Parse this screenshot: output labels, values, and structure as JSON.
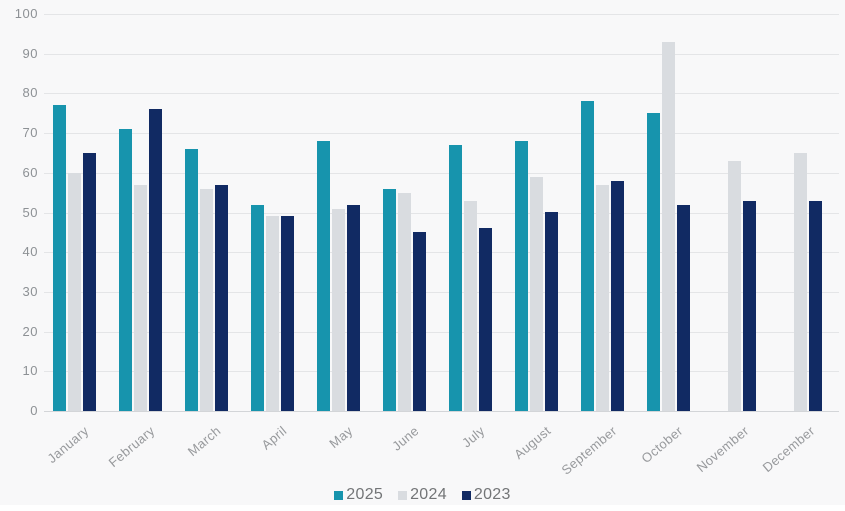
{
  "chart_data": {
    "type": "bar",
    "title": "",
    "xlabel": "",
    "ylabel": "",
    "categories": [
      "January",
      "February",
      "March",
      "April",
      "May",
      "June",
      "July",
      "August",
      "September",
      "October",
      "November",
      "December"
    ],
    "series": [
      {
        "name": "2025",
        "color": "#1794ad",
        "values": [
          77,
          71,
          66,
          52,
          68,
          56,
          67,
          68,
          78,
          75,
          null,
          null
        ]
      },
      {
        "name": "2024",
        "color": "#d9dce0",
        "values": [
          60,
          57,
          56,
          49,
          51,
          55,
          53,
          59,
          57,
          93,
          63,
          65
        ]
      },
      {
        "name": "2023",
        "color": "#112a63",
        "values": [
          65,
          76,
          57,
          49,
          52,
          45,
          46,
          50,
          58,
          52,
          53,
          53
        ]
      }
    ],
    "ylim": [
      0,
      100
    ],
    "yticks": [
      0,
      10,
      20,
      30,
      40,
      50,
      60,
      70,
      80,
      90,
      100
    ],
    "grid": "horizontal",
    "legend_position": "bottom-center"
  },
  "colors": {
    "background": "#f8f8f9",
    "gridline": "#e4e5e7",
    "axis_line": "#d3d5d8",
    "y_axis_text": "#8d9195",
    "x_axis_text": "#97999c",
    "legend_text": "#737577"
  }
}
